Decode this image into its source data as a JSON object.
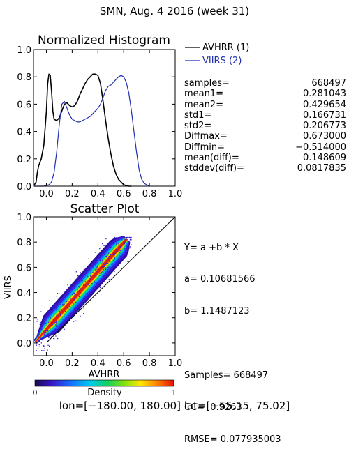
{
  "header": {
    "title": "SMN,  Aug. 4 2016 (week 31)"
  },
  "footer": {
    "region": "lon=[−180.00, 180.00] lat=[−55.15, 75.02]"
  },
  "colors": {
    "avhrr": "#000000",
    "viirs": "#1f2fb0"
  },
  "stats": [
    {
      "label": "samples=",
      "value": "668497"
    },
    {
      "label": "mean1=",
      "value": "0.281043"
    },
    {
      "label": "mean2=",
      "value": "0.429654"
    },
    {
      "label": "std1=",
      "value": "0.166731"
    },
    {
      "label": "std2=",
      "value": "0.206773"
    },
    {
      "label": "Diffmax=",
      "value": "0.673000"
    },
    {
      "label": "Diffmin=",
      "value": "−0.514000"
    },
    {
      "label": "mean(diff)=",
      "value": "0.148609"
    },
    {
      "label": "stddev(diff)=",
      "value": "0.0817835"
    }
  ],
  "fit": {
    "equation": "Y= a +b * X",
    "a": "a= 0.10681566",
    "b": "b= 1.1487123",
    "samples": "Samples= 668497",
    "cc": "CC=  0.9263",
    "rmse": "RMSE= 0.077935003"
  },
  "chart_data": [
    {
      "type": "line",
      "title": "Normalized Histogram",
      "xlim": [
        -0.1,
        1.0
      ],
      "ylim": [
        0.0,
        1.0
      ],
      "xticks": [
        "0.0",
        "0.2",
        "0.4",
        "0.6",
        "0.8",
        "1.0"
      ],
      "yticks": [
        "0.0",
        "0.2",
        "0.4",
        "0.6",
        "0.8",
        "1.0"
      ],
      "legend": "top-right",
      "series": [
        {
          "name": "AVHRR (1)",
          "color": "#000000",
          "x": [
            -0.1,
            -0.08,
            -0.07,
            -0.06,
            -0.04,
            -0.02,
            0.0,
            0.01,
            0.02,
            0.03,
            0.04,
            0.05,
            0.06,
            0.08,
            0.1,
            0.12,
            0.14,
            0.16,
            0.18,
            0.2,
            0.22,
            0.24,
            0.26,
            0.28,
            0.3,
            0.32,
            0.34,
            0.36,
            0.38,
            0.4,
            0.42,
            0.44,
            0.46,
            0.48,
            0.5,
            0.52,
            0.54,
            0.56,
            0.58,
            0.6,
            0.62,
            0.64,
            0.66
          ],
          "y": [
            0.0,
            0.03,
            0.1,
            0.15,
            0.2,
            0.3,
            0.55,
            0.75,
            0.82,
            0.81,
            0.7,
            0.55,
            0.49,
            0.48,
            0.5,
            0.55,
            0.6,
            0.61,
            0.59,
            0.58,
            0.59,
            0.62,
            0.67,
            0.71,
            0.75,
            0.78,
            0.8,
            0.82,
            0.82,
            0.81,
            0.75,
            0.62,
            0.48,
            0.35,
            0.24,
            0.15,
            0.09,
            0.05,
            0.03,
            0.01,
            0.005,
            0.0,
            0.0
          ]
        },
        {
          "name": "VIIRS (2)",
          "color": "#1f2fb0",
          "x": [
            -0.1,
            -0.06,
            -0.02,
            0.0,
            0.02,
            0.04,
            0.06,
            0.08,
            0.1,
            0.12,
            0.14,
            0.16,
            0.18,
            0.2,
            0.22,
            0.24,
            0.26,
            0.28,
            0.3,
            0.32,
            0.34,
            0.36,
            0.38,
            0.4,
            0.42,
            0.44,
            0.46,
            0.48,
            0.5,
            0.52,
            0.54,
            0.56,
            0.58,
            0.6,
            0.62,
            0.64,
            0.66,
            0.68,
            0.7,
            0.72,
            0.74,
            0.76,
            0.78,
            0.8
          ],
          "y": [
            0.0,
            0.0,
            0.0,
            0.005,
            0.01,
            0.03,
            0.1,
            0.25,
            0.45,
            0.6,
            0.62,
            0.57,
            0.52,
            0.49,
            0.48,
            0.47,
            0.47,
            0.48,
            0.49,
            0.5,
            0.51,
            0.53,
            0.55,
            0.57,
            0.6,
            0.65,
            0.7,
            0.73,
            0.74,
            0.76,
            0.78,
            0.8,
            0.81,
            0.8,
            0.76,
            0.68,
            0.55,
            0.4,
            0.25,
            0.12,
            0.05,
            0.02,
            0.01,
            0.0
          ]
        }
      ]
    },
    {
      "type": "heatmap",
      "title": "Scatter Plot",
      "xlabel": "AVHRR",
      "ylabel": "VIIRS",
      "xlim": [
        -0.1,
        1.0
      ],
      "ylim": [
        -0.1,
        1.0
      ],
      "xticks": [
        "0.0",
        "0.2",
        "0.4",
        "0.6",
        "0.8",
        "1.0"
      ],
      "yticks": [
        "0.0",
        "0.2",
        "0.4",
        "0.6",
        "0.8",
        "1.0"
      ],
      "one_to_one_line": true,
      "colorbar": {
        "label": "Density",
        "min": "0",
        "max": "1"
      }
    }
  ]
}
